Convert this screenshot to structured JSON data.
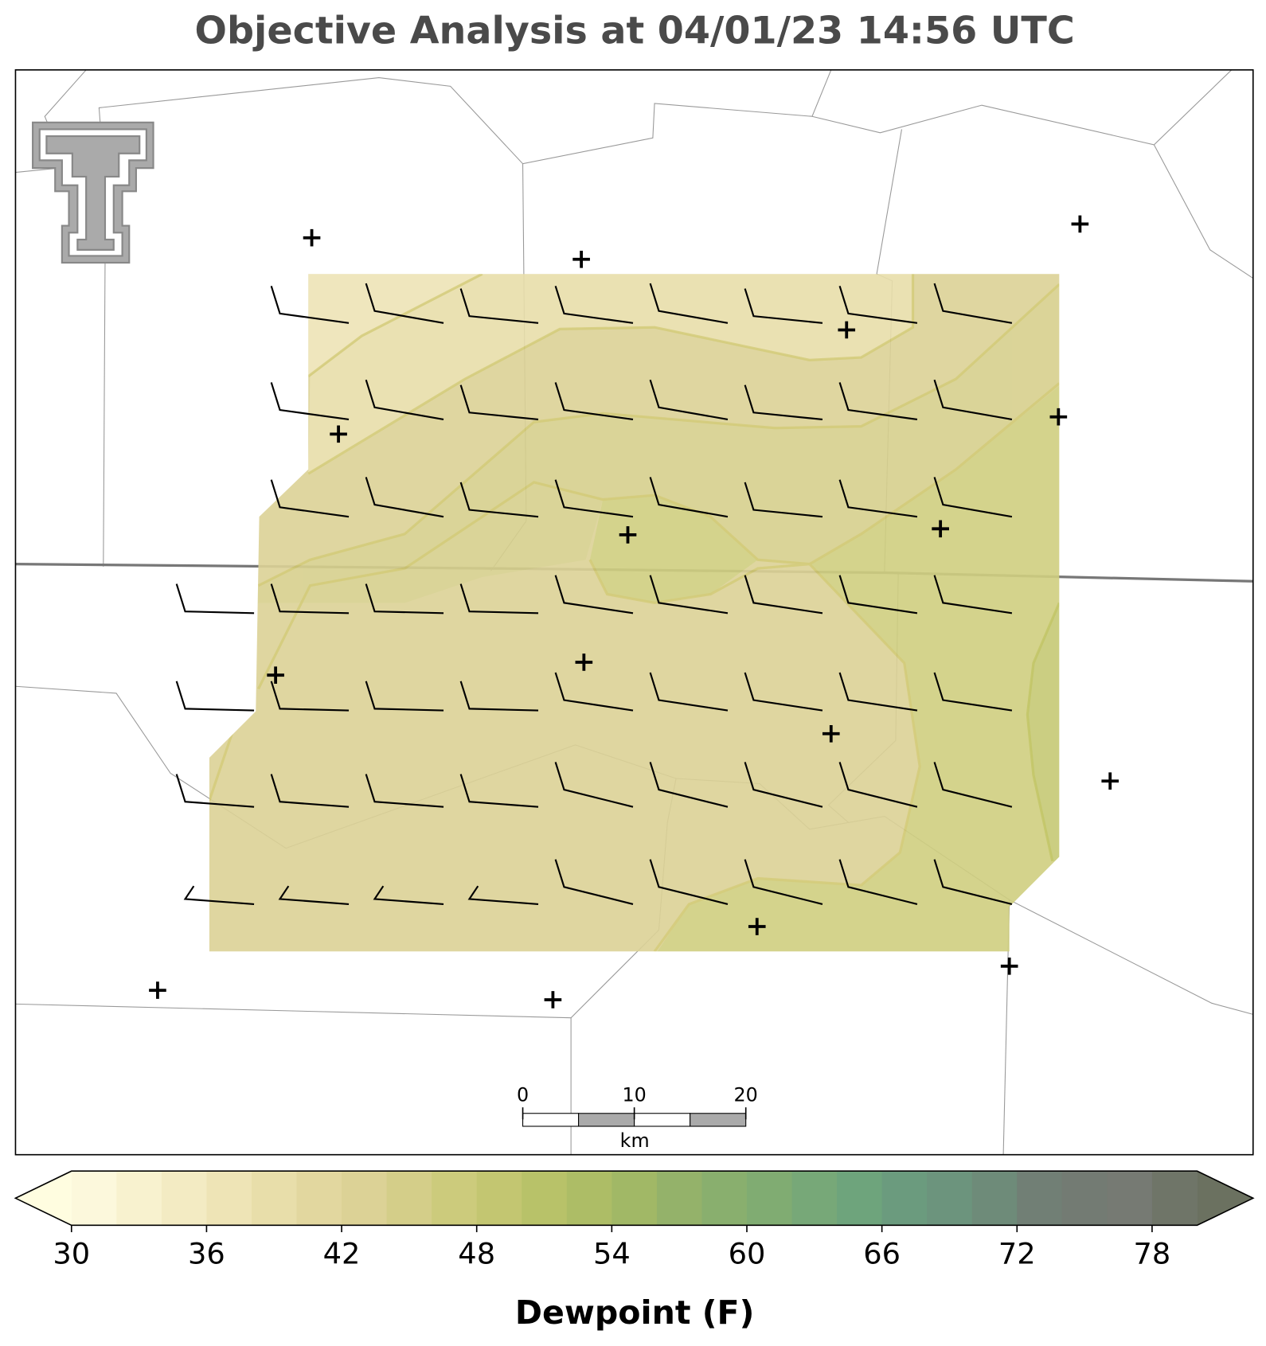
{
  "chart_data": {
    "type": "map",
    "title": "Objective Analysis at 04/01/23 14:56 UTC",
    "colorbar": {
      "label": "Dewpoint (F)",
      "levels": [
        30,
        32,
        34,
        36,
        38,
        40,
        42,
        44,
        46,
        48,
        50,
        52,
        54,
        56,
        58,
        60,
        62,
        64,
        66,
        68,
        70,
        72,
        74,
        76,
        78,
        80
      ],
      "colors": [
        "#fcf8dc",
        "#f8f2cf",
        "#f3ebc3",
        "#eee4b6",
        "#e8deaa",
        "#e2d79f",
        "#dcd296",
        "#d4ce89",
        "#cccb7c",
        "#c3c671",
        "#b8c269",
        "#adbd66",
        "#a1b866",
        "#94b26a",
        "#89af6e",
        "#80ac72",
        "#77a878",
        "#6ea47c",
        "#6b9b7e",
        "#6c947d",
        "#6e8b79",
        "#717f75",
        "#737b73",
        "#767a73",
        "#6f7568"
      ],
      "under_color": "#fffde0",
      "over_color": "#6b7160",
      "ticks": [
        30,
        36,
        42,
        48,
        54,
        60,
        66,
        72,
        78
      ]
    },
    "scale_bar": {
      "ticks": [
        0,
        10,
        20
      ],
      "step": 5,
      "unit": "km"
    }
  }
}
